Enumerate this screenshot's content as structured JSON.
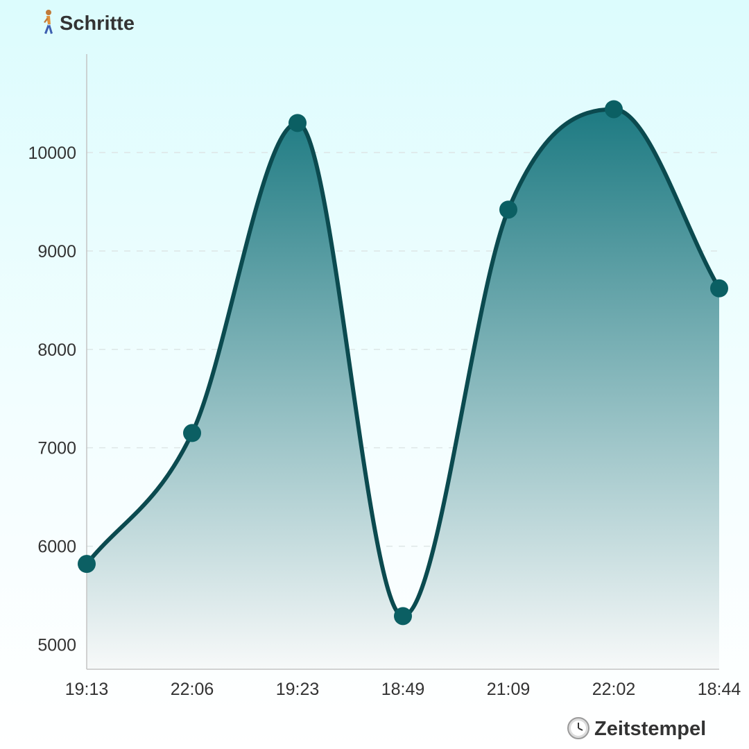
{
  "chart_data": {
    "type": "area",
    "title": "",
    "ylabel": "Schritte",
    "xlabel": "Zeitstempel",
    "ylabel_icon": "walking-person-icon",
    "xlabel_icon": "clock-icon",
    "categories": [
      "19:13",
      "22:06",
      "19:23",
      "18:49",
      "21:09",
      "22:02",
      "18:44"
    ],
    "series": [
      {
        "values": [
          5820,
          7150,
          10300,
          5290,
          9420,
          10440,
          8620
        ]
      }
    ],
    "ylim": [
      4750,
      11000
    ],
    "yticks": [
      5000,
      6000,
      7000,
      8000,
      9000,
      10000
    ],
    "grid": true,
    "legend": "none",
    "colors": {
      "line": "#0b4a4f",
      "marker": "#0b5f63",
      "fill_top": "#1d7a82",
      "fill_bottom": "#f7f9f9",
      "grid": "#dde6e6",
      "axis": "#c4c4c4"
    }
  }
}
